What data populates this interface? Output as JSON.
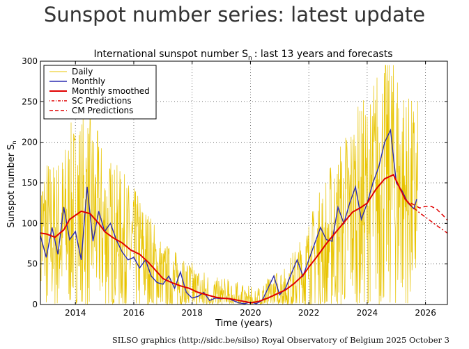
{
  "page": {
    "title": "Sunspot number series: latest update",
    "footer": "SILSO graphics (http://sidc.be/silso)  Royal Observatory of Belgium  2025 October 3"
  },
  "colors": {
    "daily": "#e8c400",
    "monthly": "#2b2bb0",
    "smoothed": "#e00000",
    "predictions": "#e00000"
  },
  "chart_data": {
    "type": "line",
    "title": "International sunspot number S",
    "title_sub": "n",
    "title_tail": ": last 13 years and forecasts",
    "xlabel": "Time (years)",
    "ylabel": "Sunspot number S",
    "ylabel_sub": "n",
    "xlim": [
      2012.8,
      2026.75
    ],
    "ylim": [
      0,
      300
    ],
    "xticks": [
      2014,
      2016,
      2018,
      2020,
      2022,
      2024,
      2026
    ],
    "yticks": [
      0,
      50,
      100,
      150,
      200,
      250,
      300
    ],
    "grid": true,
    "legend_position": "top-left",
    "legend": [
      "Daily",
      "Monthly",
      "Monthly smoothed",
      "SC Predictions",
      "CM Predictions"
    ],
    "series": [
      {
        "name": "Monthly",
        "x": [
          2012.8,
          2013.0,
          2013.2,
          2013.4,
          2013.6,
          2013.8,
          2014.0,
          2014.2,
          2014.4,
          2014.6,
          2014.8,
          2015.0,
          2015.2,
          2015.4,
          2015.6,
          2015.8,
          2016.0,
          2016.2,
          2016.4,
          2016.6,
          2016.8,
          2017.0,
          2017.2,
          2017.4,
          2017.6,
          2017.8,
          2018.0,
          2018.2,
          2018.4,
          2018.6,
          2018.8,
          2019.0,
          2019.2,
          2019.4,
          2019.6,
          2019.8,
          2020.0,
          2020.2,
          2020.4,
          2020.6,
          2020.8,
          2021.0,
          2021.2,
          2021.4,
          2021.6,
          2021.8,
          2022.0,
          2022.2,
          2022.4,
          2022.6,
          2022.8,
          2023.0,
          2023.2,
          2023.4,
          2023.6,
          2023.8,
          2024.0,
          2024.2,
          2024.4,
          2024.6,
          2024.8,
          2025.0,
          2025.2,
          2025.4,
          2025.6,
          2025.7
        ],
        "values": [
          85,
          58,
          95,
          62,
          120,
          80,
          90,
          55,
          145,
          78,
          115,
          90,
          100,
          80,
          65,
          55,
          58,
          45,
          55,
          35,
          27,
          25,
          35,
          20,
          40,
          15,
          8,
          10,
          15,
          5,
          8,
          7,
          8,
          5,
          2,
          1,
          3,
          1,
          5,
          20,
          35,
          12,
          20,
          38,
          55,
          35,
          55,
          75,
          95,
          80,
          78,
          120,
          100,
          125,
          145,
          105,
          125,
          150,
          170,
          200,
          215,
          150,
          140,
          125,
          118,
          130
        ]
      },
      {
        "name": "Monthly smoothed",
        "x": [
          2012.8,
          2013.0,
          2013.3,
          2013.6,
          2013.8,
          2014.0,
          2014.2,
          2014.5,
          2014.8,
          2015.0,
          2015.3,
          2015.6,
          2015.9,
          2016.2,
          2016.5,
          2016.8,
          2017.0,
          2017.3,
          2017.6,
          2017.9,
          2018.2,
          2018.5,
          2018.8,
          2019.0,
          2019.3,
          2019.6,
          2019.9,
          2020.0,
          2020.3,
          2020.6,
          2020.9,
          2021.2,
          2021.5,
          2021.8,
          2022.0,
          2022.3,
          2022.6,
          2022.9,
          2023.2,
          2023.5,
          2023.8,
          2024.0,
          2024.3,
          2024.6,
          2024.9,
          2025.1,
          2025.3,
          2025.5
        ],
        "values": [
          88,
          87,
          83,
          92,
          105,
          110,
          115,
          112,
          100,
          90,
          82,
          76,
          67,
          62,
          52,
          40,
          32,
          27,
          23,
          20,
          15,
          12,
          9,
          8,
          7,
          5,
          3,
          2,
          4,
          8,
          13,
          18,
          26,
          36,
          46,
          60,
          75,
          88,
          101,
          114,
          120,
          125,
          142,
          155,
          160,
          145,
          130,
          122
        ]
      },
      {
        "name": "SC Predictions",
        "x": [
          2025.5,
          2025.8,
          2026.1,
          2026.4,
          2026.75
        ],
        "values": [
          122,
          113,
          105,
          97,
          88
        ]
      },
      {
        "name": "CM Predictions",
        "x": [
          2025.5,
          2025.8,
          2026.0,
          2026.2,
          2026.4,
          2026.6,
          2026.75
        ],
        "values": [
          125,
          119,
          121,
          121,
          117,
          110,
          104
        ]
      }
    ]
  }
}
